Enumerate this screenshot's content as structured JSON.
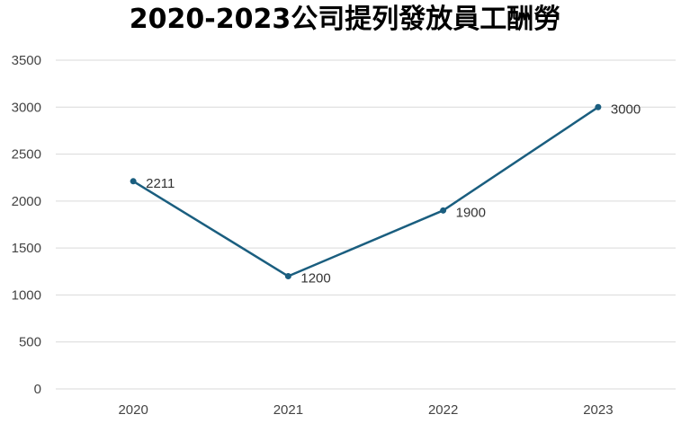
{
  "chart_data": {
    "type": "line",
    "title": "2020-2023公司提列發放員工酬勞",
    "categories": [
      "2020",
      "2021",
      "2022",
      "2023"
    ],
    "series": [
      {
        "values": [
          2211,
          1200,
          1900,
          3000
        ],
        "color": "#1a5e7f",
        "data_labels": [
          "2211",
          "1200",
          "1900",
          "3000"
        ]
      }
    ],
    "xlabel": "",
    "ylabel": "",
    "ylim": [
      0,
      3500
    ],
    "yticks": [
      0,
      500,
      1000,
      1500,
      2000,
      2500,
      3000,
      3500
    ],
    "ytick_labels": [
      "0",
      "500",
      "1000",
      "1500",
      "2000",
      "2500",
      "3000",
      "3500"
    ],
    "grid": true,
    "gridline_color": "#d9d9d9",
    "legend": "none"
  }
}
